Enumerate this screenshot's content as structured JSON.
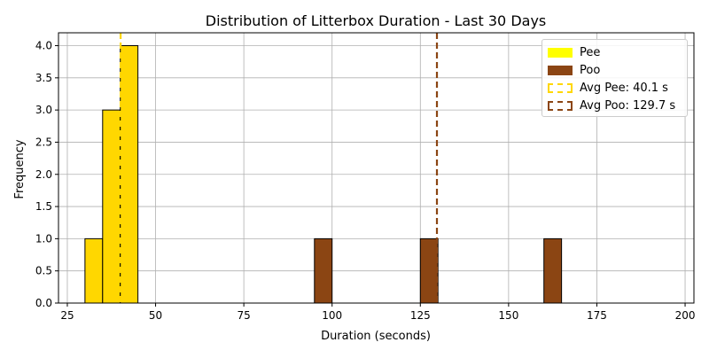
{
  "chart_data": {
    "type": "bar",
    "title": "Distribution of Litterbox Duration - Last 30 Days",
    "xlabel": "Duration (seconds)",
    "ylabel": "Frequency",
    "xlim": [
      22.5,
      202.5
    ],
    "ylim": [
      0,
      4.2
    ],
    "bin_width": 5,
    "grid": true,
    "legend_placement": "top-right",
    "x_ticks": [
      25,
      50,
      75,
      100,
      125,
      150,
      175,
      200
    ],
    "y_ticks": [
      0.0,
      0.5,
      1.0,
      1.5,
      2.0,
      2.5,
      3.0,
      3.5,
      4.0
    ],
    "x_tick_labels": [
      "25",
      "50",
      "75",
      "100",
      "125",
      "150",
      "175",
      "200"
    ],
    "y_tick_labels": [
      "0.0",
      "0.5",
      "1.0",
      "1.5",
      "2.0",
      "2.5",
      "3.0",
      "3.5",
      "4.0"
    ],
    "series": [
      {
        "name": "Pee",
        "color": "#ffd700",
        "bins": [
          {
            "start": 30,
            "end": 35,
            "value": 1
          },
          {
            "start": 35,
            "end": 40,
            "value": 3
          },
          {
            "start": 40,
            "end": 45,
            "value": 4
          }
        ]
      },
      {
        "name": "Poo",
        "color": "#8b4513",
        "range": [
          30,
          195
        ],
        "bins": [
          {
            "start": 95,
            "end": 100,
            "value": 1
          },
          {
            "start": 125,
            "end": 130,
            "value": 1
          },
          {
            "start": 160,
            "end": 165,
            "value": 1
          }
        ]
      }
    ],
    "reference_lines": [
      {
        "name": "Avg Pee: 40.1 s",
        "value": 40.1,
        "color": "#ffd700"
      },
      {
        "name": "Avg Poo: 129.7 s",
        "value": 129.7,
        "color": "#8b4513"
      }
    ],
    "legend": [
      {
        "label": "Pee",
        "kind": "patch",
        "color": "#ffff00"
      },
      {
        "label": "Poo",
        "kind": "patch",
        "color": "#8b4513"
      },
      {
        "label": "Avg Pee: 40.1 s",
        "kind": "dashed",
        "color": "#ffd700"
      },
      {
        "label": "Avg Poo: 129.7 s",
        "kind": "dashed",
        "color": "#8b4513"
      }
    ]
  }
}
